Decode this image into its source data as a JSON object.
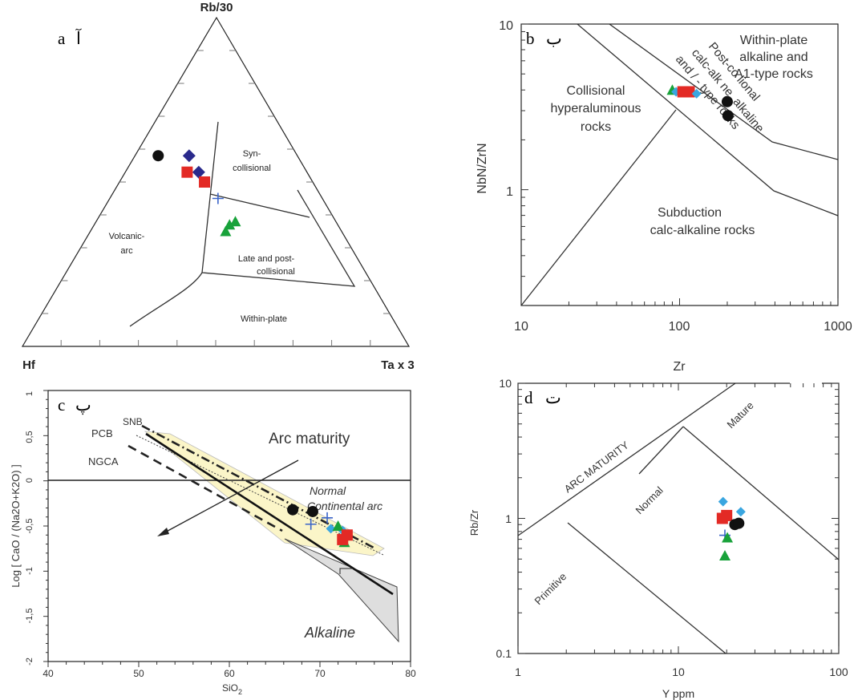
{
  "colors": {
    "red": "#e32a25",
    "navy": "#2a2a8c",
    "green": "#18a23a",
    "cyan": "#3aa6e0",
    "black": "#111111",
    "plus": "#3a64c8",
    "arcBand": "#fbf5c8",
    "alk": "#dedede"
  },
  "chart_data": [
    {
      "id": "a",
      "type": "ternary",
      "panel_tag": "a",
      "panel_tag_fa": "آ",
      "apex_labels": {
        "top": "Rb/30",
        "left": "Hf",
        "right": "Ta x 3"
      },
      "fields": [
        "Syn-collisional",
        "Volcanic-arc",
        "Late and post-collisional",
        "Within-plate"
      ],
      "points": [
        {
          "series": "black-circle",
          "rb": 0.58,
          "hf": 0.36
        },
        {
          "series": "navy-diamond",
          "rb": 0.58,
          "hf": 0.28
        },
        {
          "series": "navy-diamond",
          "rb": 0.53,
          "hf": 0.28
        },
        {
          "series": "red-square",
          "rb": 0.53,
          "hf": 0.31
        },
        {
          "series": "red-square",
          "rb": 0.5,
          "hf": 0.28
        },
        {
          "series": "blue-plus",
          "rb": 0.45,
          "hf": 0.27
        },
        {
          "series": "green-triangle",
          "rb": 0.38,
          "hf": 0.26
        },
        {
          "series": "green-triangle",
          "rb": 0.37,
          "hf": 0.28
        },
        {
          "series": "green-triangle",
          "rb": 0.35,
          "hf": 0.3
        }
      ]
    },
    {
      "id": "b",
      "type": "scatter",
      "panel_tag": "b",
      "panel_tag_fa": "ب",
      "xscale": "log",
      "yscale": "log",
      "xlim": [
        10,
        1000
      ],
      "ylim": [
        0.2,
        10
      ],
      "xticks": [
        "10",
        "100",
        "1000"
      ],
      "yticks": [
        "1",
        "10"
      ],
      "xlabel": "Zr",
      "ylabel": "NbN/ZrN",
      "fields": [
        "Within-plate alkaline and A1-type rocks",
        "Collisional hyperaluminous rocks",
        "Subduction calc-alkaline rocks"
      ],
      "rotated_field": [
        "Post-co lional",
        "calc-alk ne, alkaline",
        "and / - type rocks"
      ],
      "points": [
        {
          "series": "green-triangle",
          "x": 90,
          "y": 4.0
        },
        {
          "series": "cyan-diamond",
          "x": 95,
          "y": 3.9
        },
        {
          "series": "red-square",
          "x": 105,
          "y": 3.9
        },
        {
          "series": "red-square",
          "x": 115,
          "y": 3.9
        },
        {
          "series": "cyan-diamond",
          "x": 128,
          "y": 3.8
        },
        {
          "series": "black-circle",
          "x": 200,
          "y": 3.4
        },
        {
          "series": "black-circle",
          "x": 202,
          "y": 2.8
        }
      ]
    },
    {
      "id": "c",
      "type": "scatter",
      "panel_tag": "c",
      "panel_tag_fa": "پ",
      "xlim": [
        40,
        80
      ],
      "ylim": [
        -2,
        1
      ],
      "xticks": [
        "40",
        "50",
        "60",
        "70",
        "80"
      ],
      "yticks": [
        "1",
        "0,5",
        "0",
        "-0,5",
        "-1",
        "-1,5",
        "-2"
      ],
      "xlabel": "SiO",
      "xlabel_sub": "2",
      "ylabel": "Log [ CaO / (Na2O+K2O) ]",
      "line_labels": [
        "SNB",
        "PCB",
        "NGCA"
      ],
      "annotations": [
        "Arc maturity",
        "Normal",
        "Continental arc",
        "Alkaline"
      ],
      "points": [
        {
          "series": "black-circle",
          "x": 67,
          "y": -0.32
        },
        {
          "series": "black-circle",
          "x": 69.2,
          "y": -0.34
        },
        {
          "series": "blue-plus",
          "x": 69,
          "y": -0.48
        },
        {
          "series": "blue-plus",
          "x": 70.8,
          "y": -0.41
        },
        {
          "series": "cyan-diamond",
          "x": 71.2,
          "y": -0.53
        },
        {
          "series": "cyan-diamond",
          "x": 72.5,
          "y": -0.55
        },
        {
          "series": "green-triangle",
          "x": 72.0,
          "y": -0.5
        },
        {
          "series": "green-triangle",
          "x": 72.7,
          "y": -0.68
        },
        {
          "series": "red-square",
          "x": 72.5,
          "y": -0.65
        },
        {
          "series": "red-square",
          "x": 73.0,
          "y": -0.6
        }
      ]
    },
    {
      "id": "d",
      "type": "scatter",
      "panel_tag": "d",
      "panel_tag_fa": "ت",
      "xscale": "log",
      "yscale": "log",
      "xlim": [
        1,
        100
      ],
      "ylim": [
        0.1,
        10
      ],
      "xticks": [
        "1",
        "10",
        "100"
      ],
      "yticks": [
        "0.1",
        "1",
        "10"
      ],
      "xlabel": "Y ppm",
      "ylabel": "Rb/Zr",
      "fields": [
        "ARC MATURITY",
        "Mature",
        "Normal",
        "Primitive"
      ],
      "points": [
        {
          "series": "cyan-diamond",
          "x": 19,
          "y": 1.33
        },
        {
          "series": "cyan-diamond",
          "x": 24.5,
          "y": 1.12
        },
        {
          "series": "red-square",
          "x": 18.8,
          "y": 1.0
        },
        {
          "series": "red-square",
          "x": 20,
          "y": 1.05
        },
        {
          "series": "blue-plus",
          "x": 19.5,
          "y": 0.75
        },
        {
          "series": "black-circle",
          "x": 22.5,
          "y": 0.9
        },
        {
          "series": "black-circle",
          "x": 23.8,
          "y": 0.92
        },
        {
          "series": "green-triangle",
          "x": 20.2,
          "y": 0.72
        },
        {
          "series": "green-triangle",
          "x": 19.5,
          "y": 0.53
        }
      ]
    }
  ]
}
